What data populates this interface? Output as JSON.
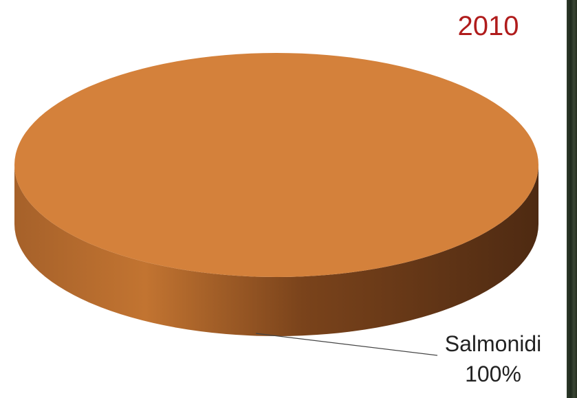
{
  "chart_data": {
    "type": "pie",
    "title": "2010",
    "slices": [
      {
        "label": "Salmonidi",
        "value": 100,
        "percent_label": "100%",
        "color": "#d4813b"
      }
    ],
    "style": "3d",
    "legend": "none"
  },
  "colors": {
    "title": "#b01c1c",
    "slice_top": "#d4813b",
    "slice_side_light": "#c27431",
    "slice_side_dark": "#4e2a12",
    "edge_strip": "#2d3a2a"
  }
}
